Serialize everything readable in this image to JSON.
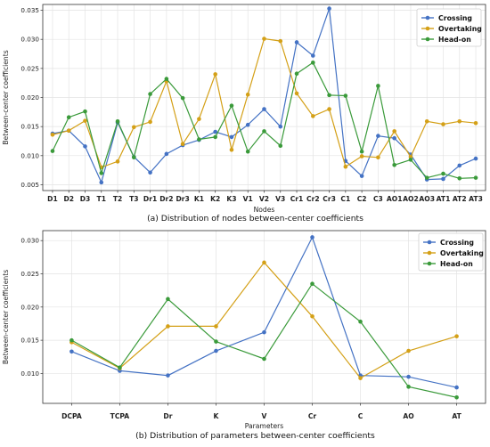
{
  "chart_data": [
    {
      "type": "line",
      "caption": "(a) Distribution of nodes between-center coefficients",
      "xlabel": "Nodes",
      "ylabel": "Between-center coefficients",
      "ylim": [
        0.004,
        0.036
      ],
      "yticks": [
        "0.005",
        "0.010",
        "0.015",
        "0.020",
        "0.025",
        "0.030",
        "0.035"
      ],
      "categories": [
        "D1",
        "D2",
        "D3",
        "T1",
        "T2",
        "T3",
        "Dr1",
        "Dr2",
        "Dr3",
        "K1",
        "K2",
        "K3",
        "V1",
        "V2",
        "V3",
        "Cr1",
        "Cr2",
        "Cr3",
        "C1",
        "C2",
        "C3",
        "AO1",
        "AO2",
        "AO3",
        "AT1",
        "AT2",
        "AT3"
      ],
      "legend_position": "top-right",
      "series": [
        {
          "name": "Crossing",
          "color": "#4472c4",
          "values": [
            0.0138,
            0.0143,
            0.0116,
            0.0054,
            0.0157,
            0.0098,
            0.0071,
            0.0103,
            0.0118,
            0.0127,
            0.0141,
            0.0132,
            0.0153,
            0.018,
            0.015,
            0.0295,
            0.0272,
            0.0353,
            0.0091,
            0.0065,
            0.0134,
            0.013,
            0.0102,
            0.0059,
            0.006,
            0.0083,
            0.0095
          ]
        },
        {
          "name": "Overtaking",
          "color": "#d4a017",
          "values": [
            0.0136,
            0.0143,
            0.016,
            0.008,
            0.009,
            0.0149,
            0.0158,
            0.0228,
            0.012,
            0.0163,
            0.024,
            0.011,
            0.0205,
            0.0301,
            0.0297,
            0.0207,
            0.0168,
            0.018,
            0.0081,
            0.0099,
            0.0097,
            0.0142,
            0.0098,
            0.0159,
            0.0154,
            0.0159,
            0.0156
          ]
        },
        {
          "name": "Head-on",
          "color": "#3a9a3a",
          "values": [
            0.0108,
            0.0166,
            0.0176,
            0.007,
            0.0159,
            0.0097,
            0.0206,
            0.0232,
            0.0199,
            0.0128,
            0.0132,
            0.0186,
            0.0107,
            0.0142,
            0.0117,
            0.0241,
            0.026,
            0.0204,
            0.0203,
            0.0107,
            0.022,
            0.0084,
            0.0093,
            0.0062,
            0.0069,
            0.0061,
            0.0062
          ]
        }
      ]
    },
    {
      "type": "line",
      "caption": "(b) Distribution of parameters between-center coefficients",
      "xlabel": "Parameters",
      "ylabel": "Between-center coefficients",
      "ylim": [
        0.0055,
        0.0315
      ],
      "yticks": [
        "0.010",
        "0.015",
        "0.020",
        "0.025",
        "0.030"
      ],
      "categories": [
        "DCPA",
        "TCPA",
        "Dr",
        "K",
        "V",
        "Cr",
        "C",
        "AO",
        "AT"
      ],
      "legend_position": "top-right",
      "series": [
        {
          "name": "Crossing",
          "color": "#4472c4",
          "values": [
            0.0133,
            0.0104,
            0.0097,
            0.0134,
            0.0162,
            0.0305,
            0.0097,
            0.0095,
            0.0079
          ]
        },
        {
          "name": "Overtaking",
          "color": "#d4a017",
          "values": [
            0.0147,
            0.0108,
            0.0171,
            0.0171,
            0.0267,
            0.0186,
            0.0093,
            0.0134,
            0.0156
          ]
        },
        {
          "name": "Head-on",
          "color": "#3a9a3a",
          "values": [
            0.015,
            0.0109,
            0.0212,
            0.0148,
            0.0122,
            0.0235,
            0.0178,
            0.008,
            0.0064
          ]
        }
      ]
    }
  ]
}
